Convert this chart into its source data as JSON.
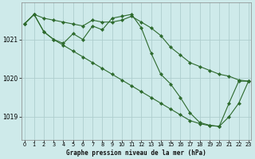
{
  "title": "Graphe pression niveau de la mer (hPa)",
  "bg_color": "#ceeaea",
  "grid_color": "#aecece",
  "line_color": "#2d6a2d",
  "x_ticks": [
    0,
    1,
    2,
    3,
    4,
    5,
    6,
    7,
    8,
    9,
    10,
    11,
    12,
    13,
    14,
    15,
    16,
    17,
    18,
    19,
    20,
    21,
    22,
    23
  ],
  "y_ticks": [
    1019,
    1020,
    1021
  ],
  "ylim": [
    1018.4,
    1021.95
  ],
  "xlim": [
    -0.3,
    23.3
  ],
  "series": [
    {
      "x": [
        0,
        1,
        2,
        3,
        4,
        5,
        6,
        7,
        8,
        9,
        10,
        11,
        12,
        13,
        14,
        15,
        16,
        17,
        18,
        19,
        20,
        21,
        22,
        23
      ],
      "y": [
        1021.4,
        1021.65,
        1021.55,
        1021.5,
        1021.45,
        1021.4,
        1021.35,
        1021.5,
        1021.45,
        1021.45,
        1021.5,
        1021.6,
        1021.45,
        1021.3,
        1021.1,
        1020.8,
        1020.6,
        1020.4,
        1020.3,
        1020.2,
        1020.1,
        1020.05,
        1019.95,
        1019.92
      ]
    },
    {
      "x": [
        0,
        1,
        2,
        3,
        4,
        5,
        6,
        7,
        8,
        9,
        10,
        11,
        12,
        13,
        14,
        15,
        16,
        17,
        18,
        19,
        20,
        21,
        22,
        23
      ],
      "y": [
        1021.4,
        1021.65,
        1021.2,
        1021.0,
        1020.9,
        1021.15,
        1021.0,
        1021.35,
        1021.25,
        1021.55,
        1021.6,
        1021.65,
        1021.3,
        1020.65,
        1020.1,
        1019.85,
        1019.5,
        1019.1,
        1018.85,
        1018.78,
        1018.75,
        1019.35,
        1019.92,
        1019.92
      ]
    },
    {
      "x": [
        0,
        1,
        2,
        3,
        4,
        5,
        6,
        7,
        8,
        9,
        10,
        11,
        12,
        13,
        14,
        15,
        16,
        17,
        18,
        19,
        20,
        21,
        22,
        23
      ],
      "y": [
        1021.4,
        1021.65,
        1021.2,
        1021.0,
        1020.85,
        1020.7,
        1020.55,
        1020.4,
        1020.25,
        1020.1,
        1019.95,
        1019.8,
        1019.65,
        1019.5,
        1019.35,
        1019.2,
        1019.05,
        1018.9,
        1018.82,
        1018.77,
        1018.75,
        1019.0,
        1019.35,
        1019.92
      ]
    }
  ]
}
